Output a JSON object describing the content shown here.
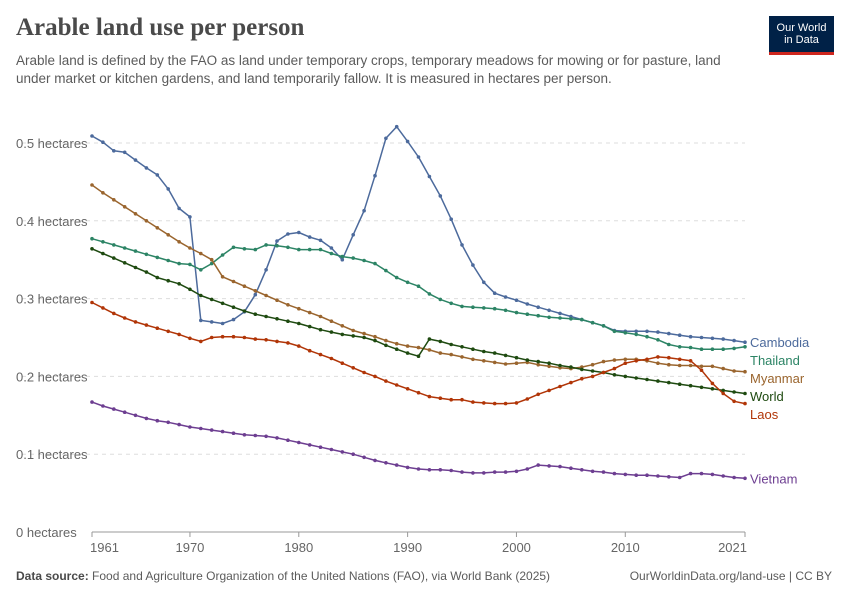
{
  "header": {
    "title": "Arable land use per person",
    "subtitle": "Arable land is defined by the FAO as land under temporary crops, temporary meadows for mowing or for pasture, land under market or kitchen gardens, and land temporarily fallow. It is measured in hectares per person.",
    "logo_line1": "Our World",
    "logo_line2": "in Data"
  },
  "footer": {
    "source_label": "Data source:",
    "source_text": "Food and Agriculture Organization of the United Nations (FAO), via World Bank (2025)",
    "link_text": "OurWorldinData.org/land-use | CC BY"
  },
  "colors": {
    "Cambodia": "#4c6a9c",
    "Thailand": "#2c8465",
    "Myanmar": "#9a652e",
    "World": "#1e4a10",
    "Laos": "#b13507",
    "Vietnam": "#6d3e91",
    "grid": "#dddddd",
    "axis_text": "#666666"
  },
  "chart_data": {
    "type": "line",
    "title": "Arable land use per person",
    "ylabel": "",
    "xlabel": "",
    "xlim": [
      1961,
      2021
    ],
    "ylim": [
      0,
      0.5
    ],
    "x_ticks": [
      1961,
      1970,
      1980,
      1990,
      2000,
      2010,
      2021
    ],
    "y_ticks": [
      {
        "value": 0,
        "label": "0 hectares"
      },
      {
        "value": 0.1,
        "label": "0.1 hectares"
      },
      {
        "value": 0.2,
        "label": "0.2 hectares"
      },
      {
        "value": 0.3,
        "label": "0.3 hectares"
      },
      {
        "value": 0.4,
        "label": "0.4 hectares"
      },
      {
        "value": 0.5,
        "label": "0.5 hectares"
      }
    ],
    "grid": "horizontal dashed",
    "legend": "inline labels at right end of lines",
    "x": [
      1961,
      1962,
      1963,
      1964,
      1965,
      1966,
      1967,
      1968,
      1969,
      1970,
      1971,
      1972,
      1973,
      1974,
      1975,
      1976,
      1977,
      1978,
      1979,
      1980,
      1981,
      1982,
      1983,
      1984,
      1985,
      1986,
      1987,
      1988,
      1989,
      1990,
      1991,
      1992,
      1993,
      1994,
      1995,
      1996,
      1997,
      1998,
      1999,
      2000,
      2001,
      2002,
      2003,
      2004,
      2005,
      2006,
      2007,
      2008,
      2009,
      2010,
      2011,
      2012,
      2013,
      2014,
      2015,
      2016,
      2017,
      2018,
      2019,
      2020,
      2021
    ],
    "series": [
      {
        "name": "Cambodia",
        "values": [
          0.509,
          0.501,
          0.49,
          0.488,
          0.478,
          0.468,
          0.459,
          0.441,
          0.416,
          0.405,
          0.272,
          0.27,
          0.268,
          0.273,
          0.283,
          0.305,
          0.337,
          0.374,
          0.383,
          0.385,
          0.379,
          0.375,
          0.365,
          0.35,
          0.382,
          0.413,
          0.458,
          0.506,
          0.521,
          0.502,
          0.482,
          0.457,
          0.432,
          0.402,
          0.369,
          0.343,
          0.321,
          0.307,
          0.302,
          0.298,
          0.293,
          0.289,
          0.285,
          0.281,
          0.277,
          0.273,
          0.269,
          0.265,
          0.259,
          0.258,
          0.258,
          0.258,
          0.257,
          0.255,
          0.253,
          0.251,
          0.25,
          0.249,
          0.248,
          0.246,
          0.244
        ]
      },
      {
        "name": "Thailand",
        "values": [
          0.377,
          0.373,
          0.369,
          0.365,
          0.361,
          0.357,
          0.353,
          0.349,
          0.345,
          0.344,
          0.337,
          0.345,
          0.356,
          0.366,
          0.364,
          0.363,
          0.369,
          0.368,
          0.366,
          0.363,
          0.363,
          0.363,
          0.358,
          0.354,
          0.352,
          0.349,
          0.345,
          0.336,
          0.327,
          0.321,
          0.316,
          0.306,
          0.299,
          0.294,
          0.29,
          0.289,
          0.288,
          0.287,
          0.285,
          0.282,
          0.28,
          0.278,
          0.276,
          0.275,
          0.274,
          0.273,
          0.269,
          0.265,
          0.258,
          0.256,
          0.254,
          0.251,
          0.247,
          0.241,
          0.238,
          0.237,
          0.235,
          0.235,
          0.235,
          0.236,
          0.238
        ]
      },
      {
        "name": "Myanmar",
        "values": [
          0.446,
          0.436,
          0.427,
          0.418,
          0.409,
          0.4,
          0.391,
          0.382,
          0.373,
          0.365,
          0.358,
          0.35,
          0.328,
          0.322,
          0.316,
          0.31,
          0.304,
          0.298,
          0.292,
          0.287,
          0.282,
          0.277,
          0.271,
          0.265,
          0.259,
          0.255,
          0.251,
          0.246,
          0.242,
          0.239,
          0.237,
          0.234,
          0.23,
          0.228,
          0.225,
          0.222,
          0.22,
          0.218,
          0.216,
          0.217,
          0.218,
          0.215,
          0.213,
          0.211,
          0.21,
          0.212,
          0.215,
          0.219,
          0.221,
          0.222,
          0.222,
          0.22,
          0.217,
          0.215,
          0.214,
          0.214,
          0.213,
          0.213,
          0.21,
          0.207,
          0.206
        ]
      },
      {
        "name": "World",
        "values": [
          0.364,
          0.358,
          0.352,
          0.346,
          0.34,
          0.334,
          0.327,
          0.323,
          0.319,
          0.312,
          0.304,
          0.299,
          0.294,
          0.289,
          0.284,
          0.28,
          0.277,
          0.274,
          0.271,
          0.268,
          0.264,
          0.26,
          0.257,
          0.254,
          0.252,
          0.25,
          0.246,
          0.24,
          0.235,
          0.23,
          0.226,
          0.248,
          0.245,
          0.241,
          0.238,
          0.235,
          0.232,
          0.23,
          0.227,
          0.224,
          0.221,
          0.219,
          0.217,
          0.214,
          0.212,
          0.209,
          0.207,
          0.205,
          0.202,
          0.2,
          0.198,
          0.196,
          0.194,
          0.192,
          0.19,
          0.188,
          0.186,
          0.184,
          0.182,
          0.18,
          0.178
        ]
      },
      {
        "name": "Laos",
        "values": [
          0.295,
          0.288,
          0.281,
          0.275,
          0.27,
          0.266,
          0.262,
          0.258,
          0.254,
          0.249,
          0.245,
          0.25,
          0.251,
          0.251,
          0.25,
          0.248,
          0.247,
          0.245,
          0.243,
          0.239,
          0.233,
          0.228,
          0.223,
          0.217,
          0.211,
          0.205,
          0.2,
          0.194,
          0.189,
          0.184,
          0.179,
          0.174,
          0.172,
          0.17,
          0.17,
          0.167,
          0.166,
          0.165,
          0.165,
          0.166,
          0.171,
          0.177,
          0.182,
          0.187,
          0.192,
          0.197,
          0.2,
          0.205,
          0.21,
          0.217,
          0.22,
          0.222,
          0.225,
          0.224,
          0.222,
          0.22,
          0.208,
          0.191,
          0.178,
          0.168,
          0.165
        ]
      },
      {
        "name": "Vietnam",
        "values": [
          0.167,
          0.162,
          0.158,
          0.154,
          0.15,
          0.146,
          0.143,
          0.141,
          0.138,
          0.135,
          0.133,
          0.131,
          0.129,
          0.127,
          0.125,
          0.124,
          0.123,
          0.121,
          0.118,
          0.115,
          0.112,
          0.109,
          0.106,
          0.103,
          0.1,
          0.096,
          0.092,
          0.089,
          0.086,
          0.083,
          0.081,
          0.08,
          0.08,
          0.079,
          0.077,
          0.076,
          0.076,
          0.077,
          0.077,
          0.078,
          0.081,
          0.086,
          0.085,
          0.084,
          0.082,
          0.08,
          0.078,
          0.077,
          0.075,
          0.074,
          0.073,
          0.073,
          0.072,
          0.071,
          0.07,
          0.075,
          0.075,
          0.074,
          0.072,
          0.07,
          0.069
        ]
      }
    ]
  }
}
